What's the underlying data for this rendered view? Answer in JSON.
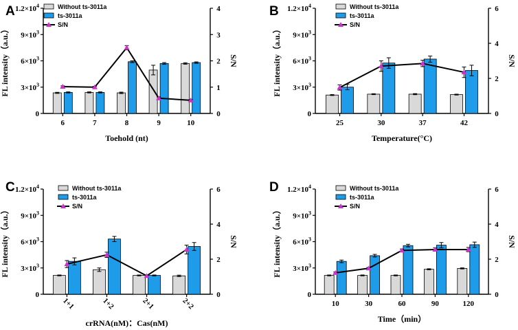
{
  "colors": {
    "without": "#d9d9d9",
    "with": "#1e9be9",
    "line": "#000000",
    "marker": "#cc33cc"
  },
  "chart_data": [
    {
      "type": "bar",
      "panel_label": "A",
      "categories": [
        "6",
        "7",
        "8",
        "9",
        "10"
      ],
      "xlabel": "Toehold (nt)",
      "ylabel": "FL intensity（a.u.）",
      "y2label": "S/N",
      "ylim": [
        0,
        12000
      ],
      "y2lim": [
        0,
        4
      ],
      "y_ticks": [
        "0",
        "3×10³",
        "6×10³",
        "9×10³",
        "1.2×10⁴"
      ],
      "y2_ticks": [
        "0",
        "1",
        "2",
        "3",
        "4"
      ],
      "legend": [
        "Without ts-3011a",
        "ts-3011a",
        "S/N"
      ],
      "series": [
        {
          "name": "Without ts-3011a",
          "values": [
            2350,
            2400,
            2350,
            4950,
            5700
          ],
          "errors": [
            60,
            60,
            80,
            550,
            80
          ]
        },
        {
          "name": "ts-3011a",
          "values": [
            2400,
            2400,
            5900,
            5700,
            5800
          ],
          "errors": [
            60,
            60,
            100,
            100,
            80
          ]
        },
        {
          "name": "S/N",
          "values": [
            1.02,
            1.0,
            2.5,
            0.58,
            0.5
          ],
          "errors": [
            0.03,
            0.03,
            0.08,
            0.05,
            0.03
          ]
        }
      ]
    },
    {
      "type": "bar",
      "panel_label": "B",
      "categories": [
        "25",
        "30",
        "37",
        "42"
      ],
      "xlabel": "Temperature(°C)",
      "ylabel": "FL intensity（a.u.）",
      "y2label": "S/N",
      "ylim": [
        0,
        12000
      ],
      "y2lim": [
        0,
        6
      ],
      "y_ticks": [
        "0",
        "3×10³",
        "6×10³",
        "9×10³",
        "1.2×10⁴"
      ],
      "y2_ticks": [
        "0",
        "2",
        "4",
        "6"
      ],
      "legend": [
        "Without ts-3011a",
        "ts-3011a",
        "S/N"
      ],
      "series": [
        {
          "name": "Without ts-3011a",
          "values": [
            2100,
            2200,
            2200,
            2150
          ],
          "errors": [
            50,
            50,
            60,
            50
          ]
        },
        {
          "name": "ts-3011a",
          "values": [
            3000,
            5750,
            6200,
            4900
          ],
          "errors": [
            300,
            600,
            350,
            600
          ]
        },
        {
          "name": "S/N",
          "values": [
            1.48,
            2.7,
            2.85,
            2.35
          ],
          "errors": [
            0.15,
            0.3,
            0.18,
            0.3
          ]
        }
      ]
    },
    {
      "type": "bar",
      "panel_label": "C",
      "categories": [
        "1+1",
        "1+2",
        "2+1",
        "2+2"
      ],
      "xlabel": "crRNA(nM)：Cas(nM)",
      "ylabel": "FL intensity（a.u.）",
      "y2label": "S/N",
      "ylim": [
        0,
        12000
      ],
      "y2lim": [
        0,
        6
      ],
      "y_ticks": [
        "0",
        "3×10³",
        "6×10³",
        "9×10³",
        "1.2×10⁴"
      ],
      "y2_ticks": [
        "0",
        "2",
        "4",
        "6"
      ],
      "legend": [
        "Without ts-3011a",
        "ts-3011a",
        "S/N"
      ],
      "series": [
        {
          "name": "Without ts-3011a",
          "values": [
            2150,
            2800,
            2150,
            2100
          ],
          "errors": [
            50,
            200,
            50,
            80
          ]
        },
        {
          "name": "ts-3011a",
          "values": [
            3750,
            6300,
            2150,
            5450
          ],
          "errors": [
            400,
            300,
            50,
            450
          ]
        },
        {
          "name": "S/N",
          "values": [
            1.72,
            2.25,
            1.05,
            2.55
          ],
          "errors": [
            0.2,
            0.15,
            0.05,
            0.25
          ]
        }
      ]
    },
    {
      "type": "bar",
      "panel_label": "D",
      "categories": [
        "10",
        "30",
        "60",
        "90",
        "120"
      ],
      "xlabel": "Time（min）",
      "ylabel": "FL intensity（a.u.）",
      "y2label": "S/N",
      "ylim": [
        0,
        12000
      ],
      "y2lim": [
        0,
        6
      ],
      "y_ticks": [
        "0",
        "3×10³",
        "6×10³",
        "9×10³",
        "1.2×10⁴"
      ],
      "y2_ticks": [
        "0",
        "2",
        "4",
        "6"
      ],
      "legend": [
        "Without ts-3011a",
        "ts-3011a",
        "S/N"
      ],
      "series": [
        {
          "name": "Without ts-3011a",
          "values": [
            2150,
            2150,
            2150,
            2850,
            2950
          ],
          "errors": [
            50,
            50,
            50,
            60,
            60
          ]
        },
        {
          "name": "ts-3011a",
          "values": [
            3750,
            4400,
            5550,
            5600,
            5650
          ],
          "errors": [
            150,
            150,
            150,
            300,
            300
          ]
        },
        {
          "name": "S/N",
          "values": [
            1.22,
            1.48,
            2.5,
            2.55,
            2.55
          ],
          "errors": [
            0.05,
            0.05,
            0.08,
            0.1,
            0.12
          ]
        }
      ]
    }
  ]
}
